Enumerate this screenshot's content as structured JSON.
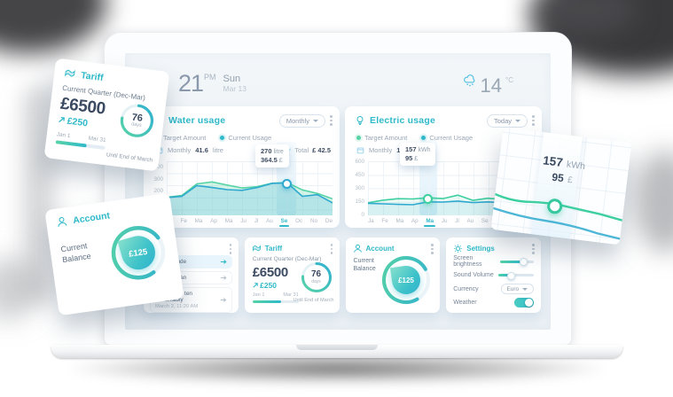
{
  "theme": {
    "accent": "#2fb9c9",
    "green": "#57d3a6",
    "blue": "#2fa9cf",
    "dark": "#3b4a61",
    "gray": "#93a1b1"
  },
  "header": {
    "time": "21",
    "meridiem": "PM",
    "day": "Sun",
    "date": "Mar 13",
    "temperature": "14",
    "temperature_unit": "°C",
    "weather_icon": "cloud-rain"
  },
  "water_panel": {
    "icon": "water-drop",
    "title": "Water usage",
    "range_button": "Monthly",
    "legend": {
      "target": "Target Amount",
      "current": "Current Usage"
    },
    "stats": {
      "period_label": "Monthly",
      "period_value": "41.6",
      "period_unit": "litre",
      "total_label": "Total",
      "total_value": "£ 42.5"
    },
    "tooltip": {
      "amount": "270",
      "amount_unit": "litre",
      "cost": "364.5",
      "cost_unit": "£"
    },
    "active_month": "Se",
    "chart_data": {
      "type": "area",
      "x": [
        "Ja",
        "Fe",
        "Ma",
        "Ap",
        "Ma",
        "Ju",
        "Jl",
        "Au",
        "Se",
        "Oc",
        "No",
        "De"
      ],
      "y_ticks": [
        "400",
        "300",
        "200",
        "100"
      ],
      "ylim": [
        0,
        450
      ],
      "legend_position": "top",
      "series": [
        {
          "name": "Target Amount",
          "color": "#57d3a6",
          "fill": "rgba(110,219,173,0.30)",
          "values": [
            150,
            165,
            262,
            278,
            252,
            228,
            238,
            268,
            272,
            212,
            182,
            138
          ]
        },
        {
          "name": "Current Usage",
          "color": "#2fa9cf",
          "fill": "rgba(125,200,232,0.35)",
          "values": [
            148,
            158,
            248,
            232,
            214,
            208,
            232,
            266,
            270,
            158,
            172,
            104
          ]
        }
      ]
    }
  },
  "electric_panel": {
    "icon": "lightbulb",
    "title": "Electric usage",
    "range_button": "Today",
    "legend": {
      "target": "Target Amount",
      "current": "Current Usage"
    },
    "stats": {
      "period_label": "Monthly",
      "period_value": "157",
      "period_unit": "kWh"
    },
    "tooltip": {
      "amount": "157",
      "amount_unit": "kWh",
      "cost": "95",
      "cost_unit": "£"
    },
    "active_month": "Ma",
    "chart_data": {
      "type": "line",
      "x": [
        "Ja",
        "Fe",
        "Ma",
        "Ap",
        "Ma",
        "Ju",
        "Jl",
        "Au",
        "Se",
        "Oc",
        "No",
        "De"
      ],
      "y_ticks": [
        "600",
        "450",
        "300",
        "150",
        "0"
      ],
      "ylim": [
        0,
        600
      ],
      "legend_position": "top",
      "series": [
        {
          "name": "Target Amount",
          "color": "#3ecfa0",
          "fill": "rgba(87,211,166,0.12)",
          "values": [
            140,
            168,
            185,
            182,
            195,
            186,
            224,
            166,
            190,
            176,
            170,
            164
          ]
        },
        {
          "name": "Current Usage",
          "color": "#2fa9cf",
          "fill": "rgba(125,200,232,0.18)",
          "values": [
            134,
            128,
            122,
            118,
            150,
            148,
            158,
            142,
            150,
            140,
            134,
            128
          ]
        }
      ]
    }
  },
  "messages_card": {
    "items": [
      {
        "title": "se solicitude",
        "highlight": true
      },
      {
        "title": "change man",
        "highlight": false
      },
      {
        "title": "Indulgence ten remarkably",
        "time": "March 2, 11:20 AM",
        "highlight": false
      }
    ]
  },
  "tariff_card": {
    "icon": "receipt",
    "title": "Tariff",
    "subtitle": "Current Quarter (Dec-Mar)",
    "amount": "£6500",
    "delta": "£250",
    "delta_direction": "up",
    "range_start": "Jan 1",
    "range_end": "Mar 31",
    "progress_pct": 62,
    "days_value": "76",
    "days_label": "days",
    "days_pct": 76,
    "footnote": "Until End of March"
  },
  "account_card": {
    "icon": "person",
    "title": "Account",
    "balance_label": "Current Balance",
    "balance_value": "£125",
    "gauge_pct": 75
  },
  "settings_card": {
    "icon": "gear",
    "title": "Settings",
    "rows": [
      {
        "label": "Screen brightness",
        "control": "slider",
        "value_pct": 62
      },
      {
        "label": "Sound Volume",
        "control": "slider",
        "value_pct": 30
      },
      {
        "label": "Currency",
        "control": "select",
        "value": "Euro"
      },
      {
        "label": "Weather",
        "control": "toggle",
        "on": true
      }
    ]
  },
  "floating_detail_card": {
    "amount": "157",
    "amount_unit": "kWh",
    "cost": "95",
    "cost_unit": "£"
  }
}
